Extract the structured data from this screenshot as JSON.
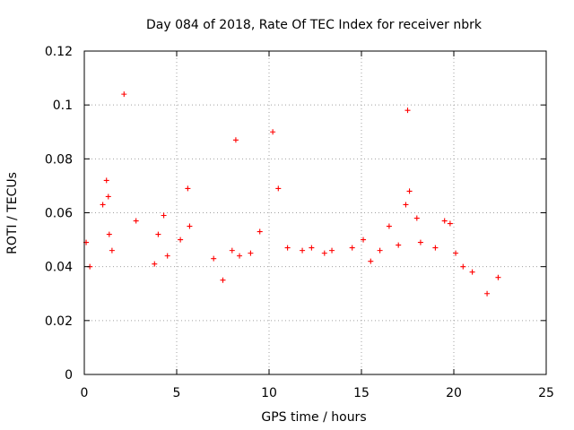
{
  "colors": {
    "series": "#ff0000",
    "axis": "#000000",
    "grid": "#a0a0a0",
    "background": "#ffffff"
  },
  "chart_data": {
    "type": "scatter",
    "title": "Day 084 of 2018, Rate Of TEC Index for receiver nbrk",
    "xlabel": "GPS time / hours",
    "ylabel": "ROTI / TECUs",
    "xlim": [
      0,
      25
    ],
    "ylim": [
      0,
      0.12
    ],
    "xticks": [
      0,
      5,
      10,
      15,
      20,
      25
    ],
    "yticks": [
      0,
      0.02,
      0.04,
      0.06,
      0.08,
      0.1,
      0.12
    ],
    "xtick_labels": [
      "0",
      "5",
      "10",
      "15",
      "20",
      "25"
    ],
    "ytick_labels": [
      "0",
      "0.02",
      "0.04",
      "0.06",
      "0.08",
      "0.1",
      "0.12"
    ],
    "grid": true,
    "marker": "plus",
    "series": [
      {
        "name": "ROTI",
        "x": [
          0.1,
          0.3,
          1.0,
          1.2,
          1.3,
          1.35,
          1.5,
          2.15,
          2.8,
          3.8,
          4.0,
          4.3,
          4.5,
          5.2,
          5.6,
          5.7,
          7.0,
          7.5,
          8.0,
          8.2,
          8.4,
          9.0,
          9.5,
          10.2,
          10.5,
          11.0,
          11.8,
          12.3,
          13.0,
          13.4,
          14.5,
          15.1,
          15.5,
          16.0,
          16.5,
          17.0,
          17.4,
          17.5,
          17.6,
          18.0,
          18.2,
          19.0,
          19.5,
          19.8,
          20.1,
          20.5,
          21.0,
          21.8,
          22.4
        ],
        "y": [
          0.049,
          0.04,
          0.063,
          0.072,
          0.066,
          0.052,
          0.046,
          0.104,
          0.057,
          0.041,
          0.052,
          0.059,
          0.044,
          0.05,
          0.069,
          0.055,
          0.043,
          0.035,
          0.046,
          0.087,
          0.044,
          0.045,
          0.053,
          0.09,
          0.069,
          0.047,
          0.046,
          0.047,
          0.045,
          0.046,
          0.047,
          0.05,
          0.042,
          0.046,
          0.055,
          0.048,
          0.063,
          0.098,
          0.068,
          0.058,
          0.049,
          0.047,
          0.057,
          0.056,
          0.045,
          0.04,
          0.038,
          0.03,
          0.036
        ]
      }
    ]
  }
}
